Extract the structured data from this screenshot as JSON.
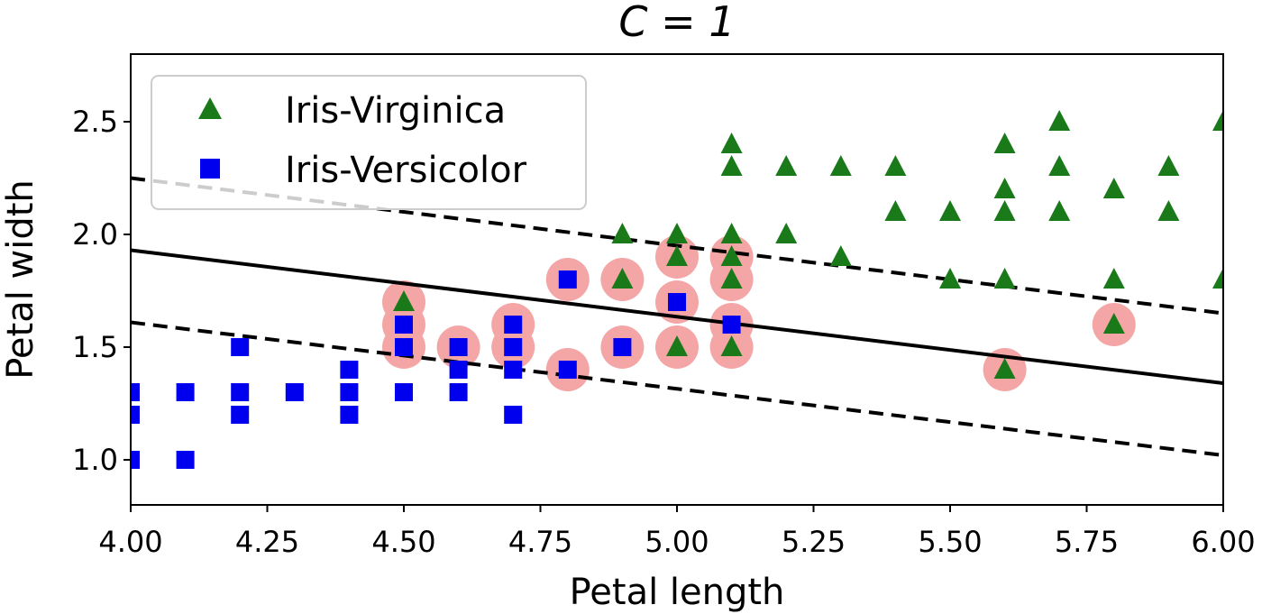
{
  "chart_data": {
    "type": "scatter",
    "title": "C = 1",
    "xlabel": "Petal length",
    "ylabel": "Petal width",
    "xlim": [
      4.0,
      6.0
    ],
    "ylim": [
      0.8,
      2.8
    ],
    "xticks": [
      "4.00",
      "4.25",
      "4.50",
      "4.75",
      "5.00",
      "5.25",
      "5.50",
      "5.75",
      "6.00"
    ],
    "yticks": [
      "1.0",
      "1.5",
      "2.0",
      "2.5"
    ],
    "grid": false,
    "legend_position": "top-left",
    "series": [
      {
        "name": "Iris-Virginica",
        "marker": "triangle",
        "color": "#1a7a1a",
        "points": [
          [
            4.5,
            1.7
          ],
          [
            4.9,
            2.0
          ],
          [
            4.9,
            1.8
          ],
          [
            5.0,
            2.0
          ],
          [
            5.0,
            1.9
          ],
          [
            5.0,
            1.5
          ],
          [
            5.1,
            2.4
          ],
          [
            5.1,
            2.3
          ],
          [
            5.1,
            2.0
          ],
          [
            5.1,
            1.9
          ],
          [
            5.1,
            1.8
          ],
          [
            5.1,
            1.5
          ],
          [
            5.2,
            2.3
          ],
          [
            5.2,
            2.0
          ],
          [
            5.3,
            2.3
          ],
          [
            5.3,
            1.9
          ],
          [
            5.4,
            2.3
          ],
          [
            5.4,
            2.1
          ],
          [
            5.5,
            2.1
          ],
          [
            5.5,
            1.8
          ],
          [
            5.6,
            2.4
          ],
          [
            5.6,
            2.2
          ],
          [
            5.6,
            2.1
          ],
          [
            5.6,
            1.8
          ],
          [
            5.6,
            1.4
          ],
          [
            5.7,
            2.5
          ],
          [
            5.7,
            2.3
          ],
          [
            5.7,
            2.1
          ],
          [
            5.8,
            2.2
          ],
          [
            5.8,
            1.8
          ],
          [
            5.8,
            1.6
          ],
          [
            5.9,
            2.3
          ],
          [
            5.9,
            2.1
          ],
          [
            6.0,
            2.5
          ],
          [
            6.0,
            1.8
          ]
        ]
      },
      {
        "name": "Iris-Versicolor",
        "marker": "square",
        "color": "#0000ee",
        "points": [
          [
            4.0,
            1.3
          ],
          [
            4.0,
            1.2
          ],
          [
            4.0,
            1.0
          ],
          [
            4.1,
            1.3
          ],
          [
            4.1,
            1.0
          ],
          [
            4.2,
            1.5
          ],
          [
            4.2,
            1.3
          ],
          [
            4.2,
            1.2
          ],
          [
            4.3,
            1.3
          ],
          [
            4.4,
            1.4
          ],
          [
            4.4,
            1.3
          ],
          [
            4.4,
            1.2
          ],
          [
            4.5,
            1.6
          ],
          [
            4.5,
            1.5
          ],
          [
            4.5,
            1.3
          ],
          [
            4.6,
            1.5
          ],
          [
            4.6,
            1.4
          ],
          [
            4.6,
            1.3
          ],
          [
            4.7,
            1.6
          ],
          [
            4.7,
            1.5
          ],
          [
            4.7,
            1.4
          ],
          [
            4.7,
            1.2
          ],
          [
            4.8,
            1.8
          ],
          [
            4.8,
            1.4
          ],
          [
            4.9,
            1.5
          ],
          [
            5.0,
            1.7
          ],
          [
            5.1,
            1.6
          ]
        ]
      }
    ],
    "support_vectors": {
      "color": "#f4a6a6",
      "points": [
        [
          4.5,
          1.7
        ],
        [
          4.5,
          1.6
        ],
        [
          4.5,
          1.5
        ],
        [
          4.6,
          1.5
        ],
        [
          4.7,
          1.6
        ],
        [
          4.7,
          1.5
        ],
        [
          4.8,
          1.8
        ],
        [
          4.8,
          1.4
        ],
        [
          4.9,
          1.8
        ],
        [
          4.9,
          1.5
        ],
        [
          5.0,
          1.9
        ],
        [
          5.0,
          1.7
        ],
        [
          5.0,
          1.5
        ],
        [
          5.1,
          1.9
        ],
        [
          5.1,
          1.8
        ],
        [
          5.1,
          1.6
        ],
        [
          5.1,
          1.5
        ],
        [
          5.6,
          1.4
        ],
        [
          5.8,
          1.6
        ]
      ]
    },
    "lines": [
      {
        "role": "decision-boundary",
        "style": "solid",
        "color": "#000000",
        "points": [
          [
            4.0,
            1.93
          ],
          [
            6.0,
            1.34
          ]
        ]
      },
      {
        "role": "margin-upper",
        "style": "dashed",
        "color": "#000000",
        "points": [
          [
            4.0,
            2.25
          ],
          [
            6.0,
            1.65
          ]
        ]
      },
      {
        "role": "margin-lower",
        "style": "dashed",
        "color": "#000000",
        "points": [
          [
            4.0,
            1.61
          ],
          [
            6.0,
            1.02
          ]
        ]
      }
    ]
  }
}
